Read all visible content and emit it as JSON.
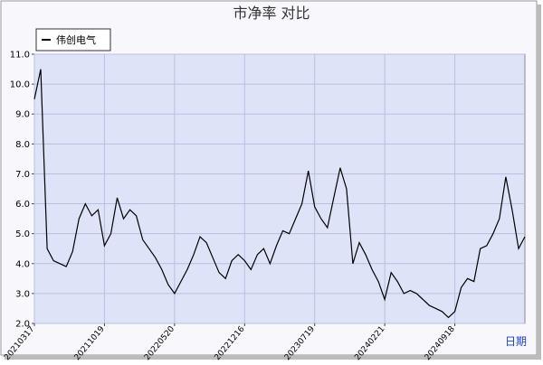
{
  "chart_data": {
    "type": "line",
    "title": "市净率 对比",
    "xlabel": "日期",
    "categories": [
      "20210317",
      null,
      null,
      null,
      null,
      null,
      null,
      null,
      null,
      null,
      null,
      "20211019",
      null,
      null,
      null,
      null,
      null,
      null,
      null,
      null,
      null,
      null,
      "20220520",
      null,
      null,
      null,
      null,
      null,
      null,
      null,
      null,
      null,
      null,
      "20221216",
      null,
      null,
      null,
      null,
      null,
      null,
      null,
      null,
      null,
      null,
      "20230719",
      null,
      null,
      null,
      null,
      null,
      null,
      null,
      null,
      null,
      null,
      "20240221",
      null,
      null,
      null,
      null,
      null,
      null,
      null,
      null,
      null,
      null,
      "20240918",
      null,
      null,
      null,
      null,
      null,
      null,
      null,
      null,
      null,
      null,
      null
    ],
    "series": [
      {
        "name": "伟创电气",
        "color": "#000000",
        "values": [
          9.5,
          10.5,
          4.5,
          4.1,
          4.0,
          3.9,
          4.4,
          5.5,
          6.0,
          5.6,
          5.8,
          4.6,
          5.0,
          6.2,
          5.5,
          5.8,
          5.6,
          4.8,
          4.5,
          4.2,
          3.8,
          3.3,
          3.0,
          3.4,
          3.8,
          4.3,
          4.9,
          4.7,
          4.2,
          3.7,
          3.5,
          4.1,
          4.3,
          4.1,
          3.8,
          4.3,
          4.5,
          4.0,
          4.6,
          5.1,
          5.0,
          5.5,
          6.0,
          7.1,
          5.9,
          5.5,
          5.2,
          6.2,
          7.2,
          6.5,
          4.0,
          4.7,
          4.3,
          3.8,
          3.4,
          2.8,
          3.7,
          3.4,
          3.0,
          3.1,
          3.0,
          2.8,
          2.6,
          2.5,
          2.4,
          2.2,
          2.4,
          3.2,
          3.5,
          3.4,
          4.5,
          4.6,
          5.0,
          5.5,
          6.9,
          5.8,
          4.5,
          4.9
        ]
      }
    ],
    "ylim": [
      2,
      11
    ],
    "yticks": [
      {
        "value": 2,
        "label": "2.0"
      },
      {
        "value": 3,
        "label": "3.0"
      },
      {
        "value": 4,
        "label": "4.0"
      },
      {
        "value": 5,
        "label": "5.0"
      },
      {
        "value": 6,
        "label": "6.0"
      },
      {
        "value": 7,
        "label": "7.0"
      },
      {
        "value": 8,
        "label": "8.0"
      },
      {
        "value": 9,
        "label": "9.0"
      },
      {
        "value": 10,
        "label": "10.0"
      },
      {
        "value": 11,
        "label": "11.0"
      }
    ],
    "grid": true,
    "legend": "top-left",
    "plot_background": "#dfe3f8"
  }
}
